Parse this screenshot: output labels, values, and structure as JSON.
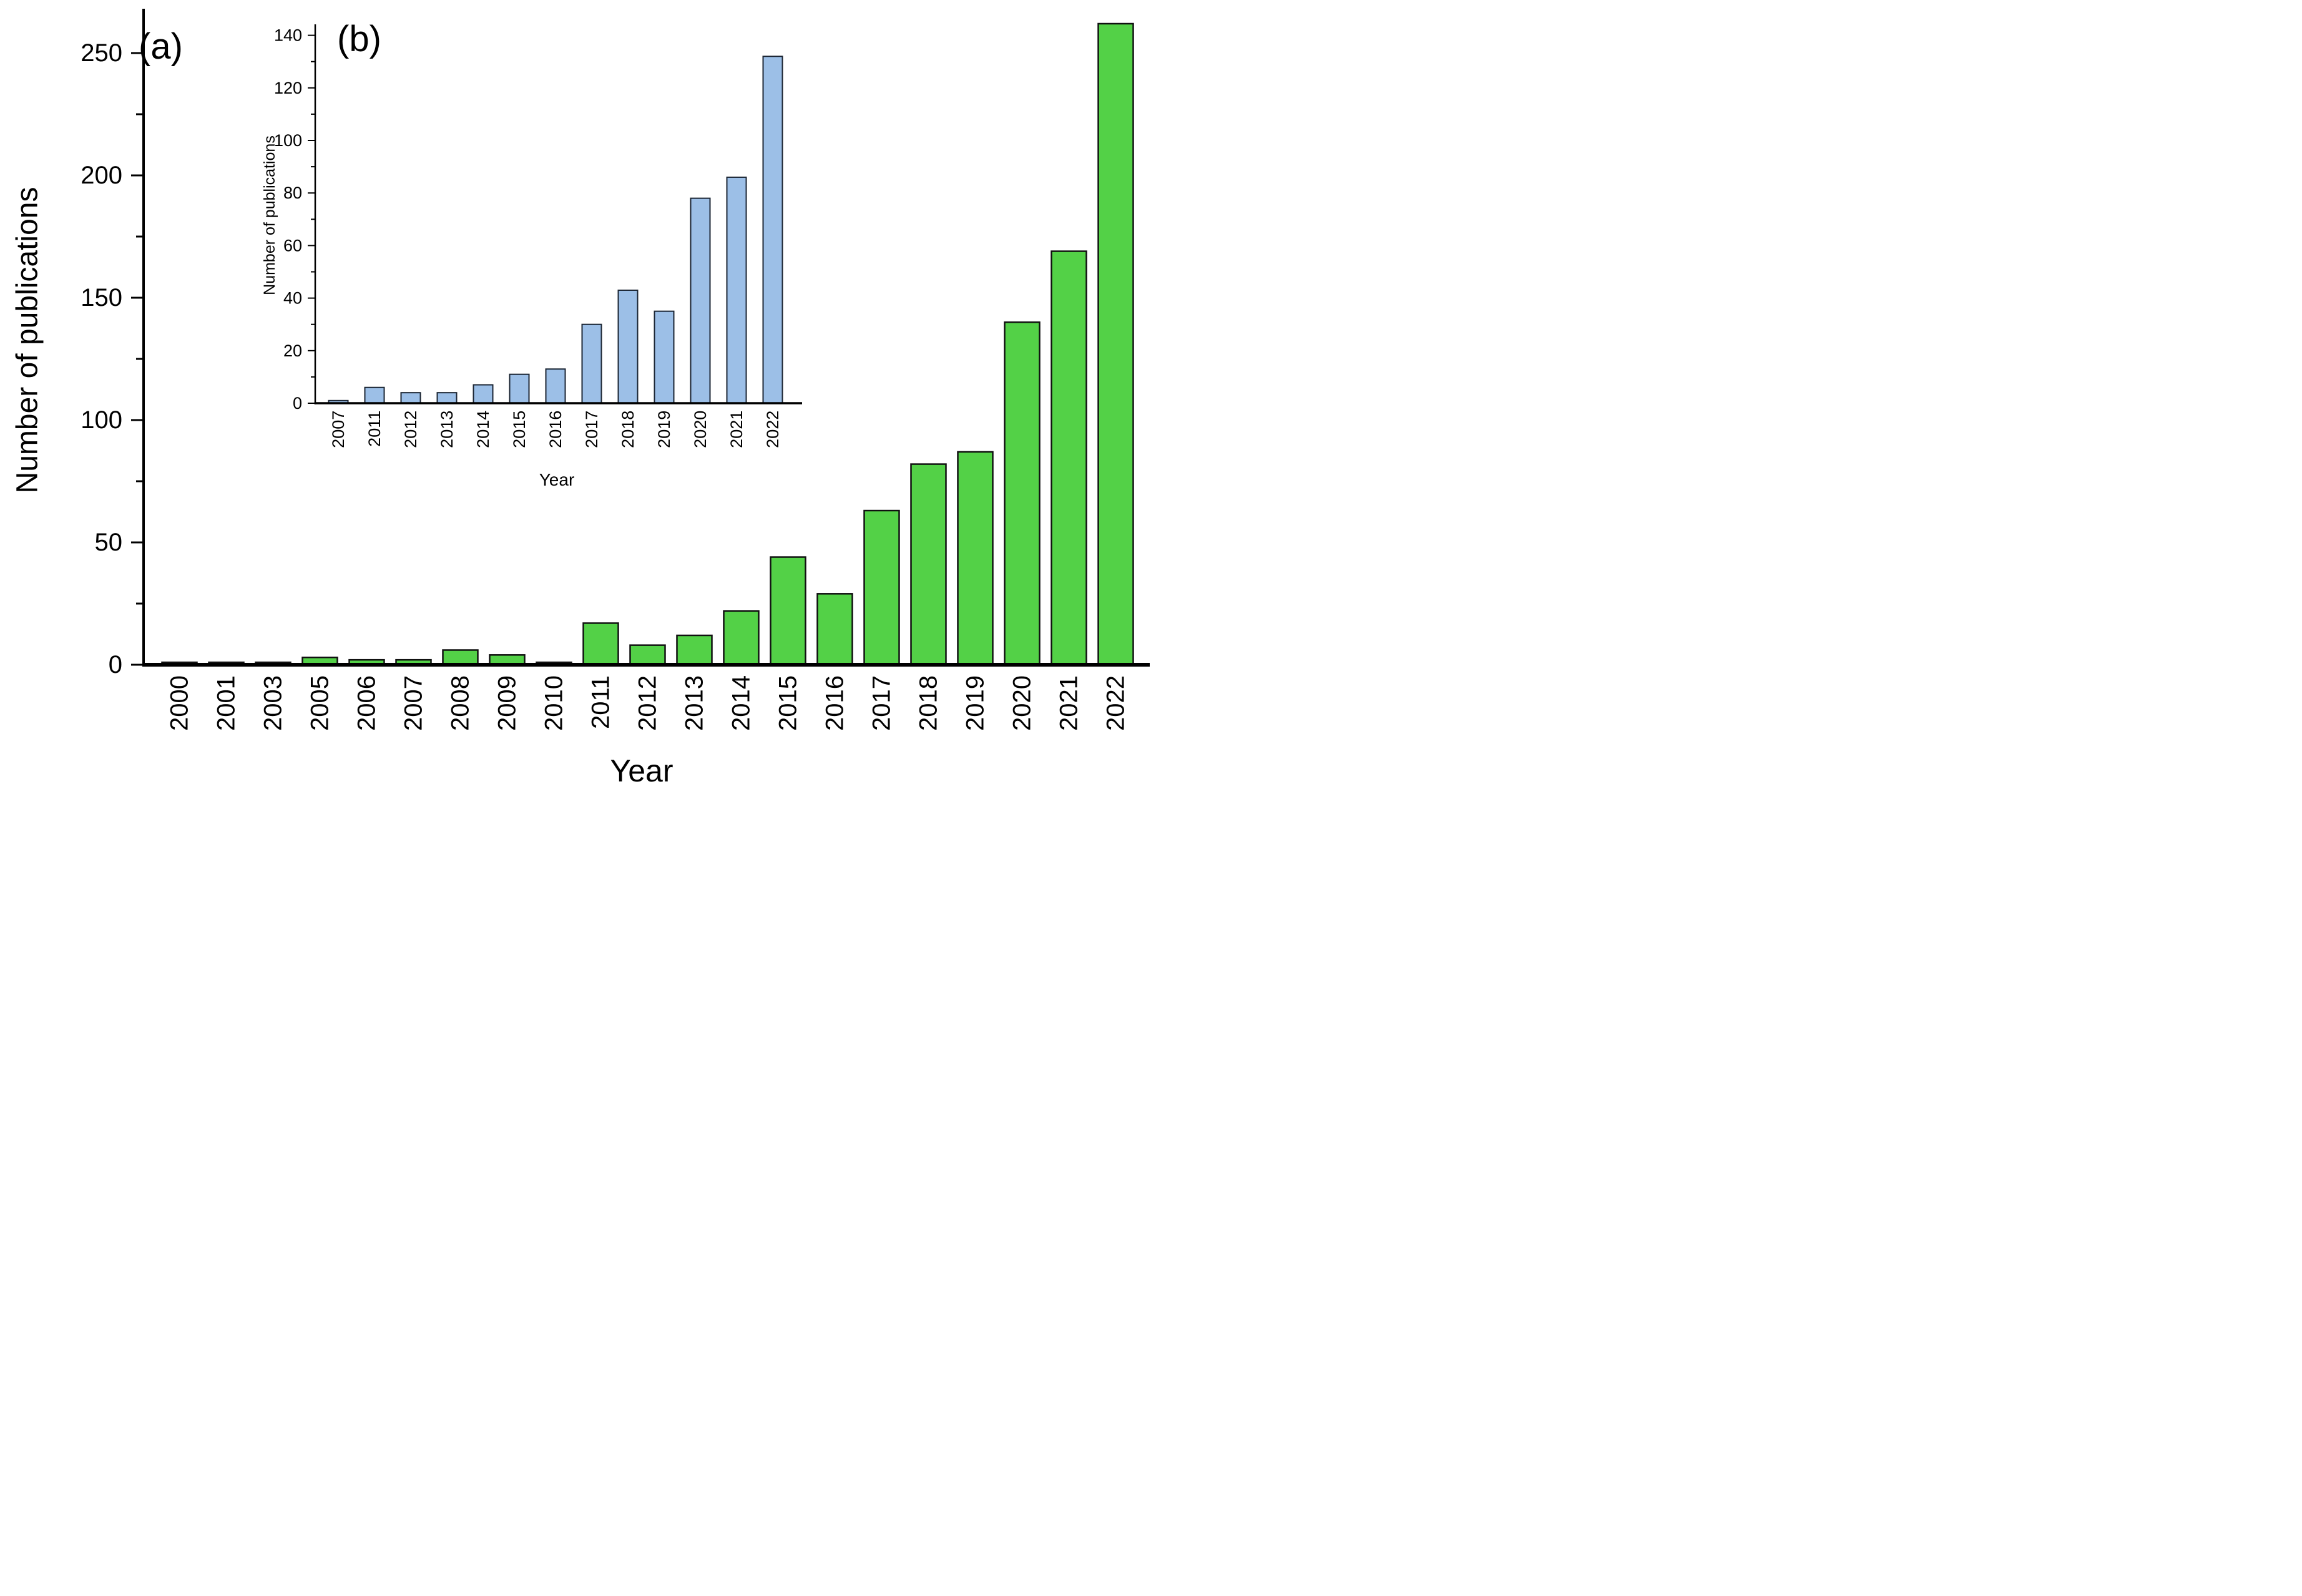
{
  "figure": {
    "panels": [
      {
        "label": "(a)"
      },
      {
        "label": "(b)"
      }
    ]
  },
  "chart_data": [
    {
      "id": "main",
      "panel": "(a)",
      "type": "bar",
      "title": "",
      "xlabel": "Year",
      "ylabel": "Number of publications",
      "categories": [
        "2000",
        "2001",
        "2003",
        "2005",
        "2006",
        "2007",
        "2008",
        "2009",
        "2010",
        "2011",
        "2012",
        "2013",
        "2014",
        "2015",
        "2016",
        "2017",
        "2018",
        "2019",
        "2020",
        "2021",
        "2022"
      ],
      "values": [
        1,
        1,
        1,
        3,
        2,
        2,
        6,
        4,
        1,
        17,
        8,
        12,
        22,
        44,
        29,
        63,
        82,
        87,
        140,
        169,
        262
      ],
      "ylim": [
        0,
        266
      ],
      "yticks_major": [
        0,
        50,
        100,
        150,
        200,
        250
      ],
      "yticks_minor": [
        25,
        75,
        125,
        175,
        225
      ],
      "bar_fill": "#53D147",
      "bar_stroke": "#101010",
      "axis_color": "#000000",
      "grid": false,
      "legend": "none"
    },
    {
      "id": "inset",
      "panel": "(b)",
      "type": "bar",
      "title": "",
      "xlabel": "Year",
      "ylabel": "Number of publications",
      "categories": [
        "2007",
        "2011",
        "2012",
        "2013",
        "2014",
        "2015",
        "2016",
        "2017",
        "2018",
        "2019",
        "2020",
        "2021",
        "2022"
      ],
      "values": [
        1,
        6,
        4,
        4,
        7,
        11,
        13,
        30,
        43,
        35,
        78,
        86,
        132
      ],
      "ylim": [
        0,
        148
      ],
      "yticks_major": [
        0,
        20,
        40,
        60,
        80,
        100,
        120,
        140
      ],
      "yticks_minor": [
        10,
        30,
        50,
        70,
        90,
        110,
        130
      ],
      "bar_fill": "#9CBFE7",
      "bar_stroke": "#1B2533",
      "axis_color": "#000000",
      "grid": false,
      "legend": "none"
    }
  ]
}
